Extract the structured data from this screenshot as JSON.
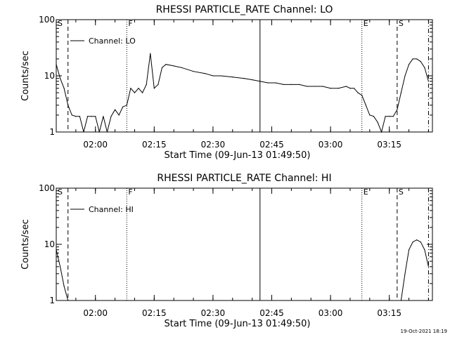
{
  "footer_stamp": "19-Oct-2021 18:19",
  "chart_data": [
    {
      "type": "line",
      "title": "RHESSI PARTICLE_RATE Channel: LO",
      "xlabel": "Start Time (09-Jun-13 01:49:50)",
      "ylabel": "Counts/sec",
      "yscale": "log",
      "ylim": [
        1,
        100
      ],
      "y_ticks": [
        {
          "v": 1,
          "label": "1"
        },
        {
          "v": 10,
          "label": "10"
        },
        {
          "v": 100,
          "label": "100"
        }
      ],
      "xlim": [
        "01:50",
        "03:26"
      ],
      "x_ticks": [
        "02:00",
        "02:15",
        "02:30",
        "02:45",
        "03:00",
        "03:15"
      ],
      "legend": {
        "label": "Channel: LO",
        "position": "top-left"
      },
      "markers": [
        {
          "t": "01:50",
          "label": "S",
          "style": "dashed"
        },
        {
          "t": "01:53",
          "label": "",
          "style": "dashed"
        },
        {
          "t": "02:08",
          "label": "F",
          "style": "dotted"
        },
        {
          "t": "02:42",
          "label": "",
          "style": "solid"
        },
        {
          "t": "03:08",
          "label": "E",
          "style": "dotted"
        },
        {
          "t": "03:17",
          "label": "S",
          "style": "dashed"
        },
        {
          "t": "03:25",
          "label": "",
          "style": "dashdot"
        }
      ],
      "series": [
        {
          "x": [
            "01:50",
            "01:51",
            "01:52",
            "01:53",
            "01:54",
            "01:55",
            "01:56",
            "01:57",
            "01:58",
            "01:59",
            "02:00",
            "02:01",
            "02:02",
            "02:03",
            "02:04",
            "02:05",
            "02:06",
            "02:07",
            "02:08",
            "02:09",
            "02:10",
            "02:11",
            "02:12",
            "02:13",
            "02:14",
            "02:15",
            "02:16",
            "02:17",
            "02:18",
            "02:20",
            "02:22",
            "02:25",
            "02:28",
            "02:30",
            "02:32",
            "02:35",
            "02:38",
            "02:40",
            "02:42",
            "02:44",
            "02:46",
            "02:48",
            "02:50",
            "02:52",
            "02:54",
            "02:56",
            "02:58",
            "03:00",
            "03:02",
            "03:04",
            "03:05",
            "03:06",
            "03:07",
            "03:08",
            "03:09",
            "03:10",
            "03:11",
            "03:12",
            "03:13",
            "03:14",
            "03:15",
            "03:16",
            "03:17",
            "03:18",
            "03:19",
            "03:20",
            "03:21",
            "03:22",
            "03:23",
            "03:24",
            "03:25"
          ],
          "values": [
            16,
            9,
            6,
            3,
            2,
            1.9,
            1.9,
            1,
            1.9,
            1.9,
            1.9,
            1,
            1.9,
            1,
            1.9,
            2.5,
            2,
            2.8,
            3,
            6,
            5,
            6,
            5,
            7,
            25,
            6,
            7,
            14,
            16,
            15,
            14,
            12,
            11,
            10,
            10,
            9.5,
            9,
            8.5,
            8,
            7.5,
            7.5,
            7,
            7,
            7,
            6.5,
            6.5,
            6.5,
            6,
            6,
            6.5,
            6,
            6,
            5,
            4.5,
            3,
            2,
            1.9,
            1.5,
            1,
            1.9,
            1.9,
            1.9,
            2.5,
            5,
            10,
            16,
            20,
            20,
            18,
            14,
            8
          ]
        }
      ]
    },
    {
      "type": "line",
      "title": "RHESSI PARTICLE_RATE Channel: HI",
      "xlabel": "Start Time (09-Jun-13 01:49:50)",
      "ylabel": "Counts/sec",
      "yscale": "log",
      "ylim": [
        1,
        100
      ],
      "y_ticks": [
        {
          "v": 1,
          "label": "1"
        },
        {
          "v": 10,
          "label": "10"
        },
        {
          "v": 100,
          "label": "100"
        }
      ],
      "xlim": [
        "01:50",
        "03:26"
      ],
      "x_ticks": [
        "02:00",
        "02:15",
        "02:30",
        "02:45",
        "03:00",
        "03:15"
      ],
      "legend": {
        "label": "Channel: HI",
        "position": "top-left"
      },
      "markers": [
        {
          "t": "01:50",
          "label": "S",
          "style": "dashed"
        },
        {
          "t": "01:53",
          "label": "",
          "style": "dashed"
        },
        {
          "t": "02:08",
          "label": "F",
          "style": "dotted"
        },
        {
          "t": "02:42",
          "label": "",
          "style": "solid"
        },
        {
          "t": "03:08",
          "label": "E",
          "style": "dotted"
        },
        {
          "t": "03:17",
          "label": "S",
          "style": "dashed"
        },
        {
          "t": "03:25",
          "label": "",
          "style": "dashdot"
        }
      ],
      "series": [
        {
          "x": [
            "01:50",
            "01:51",
            "01:52",
            "01:53",
            "03:18",
            "03:19",
            "03:20",
            "03:21",
            "03:22",
            "03:23",
            "03:24",
            "03:25"
          ],
          "values": [
            8,
            4,
            1.8,
            1,
            1,
            3,
            8,
            11,
            12,
            11,
            8,
            4
          ]
        }
      ]
    }
  ]
}
